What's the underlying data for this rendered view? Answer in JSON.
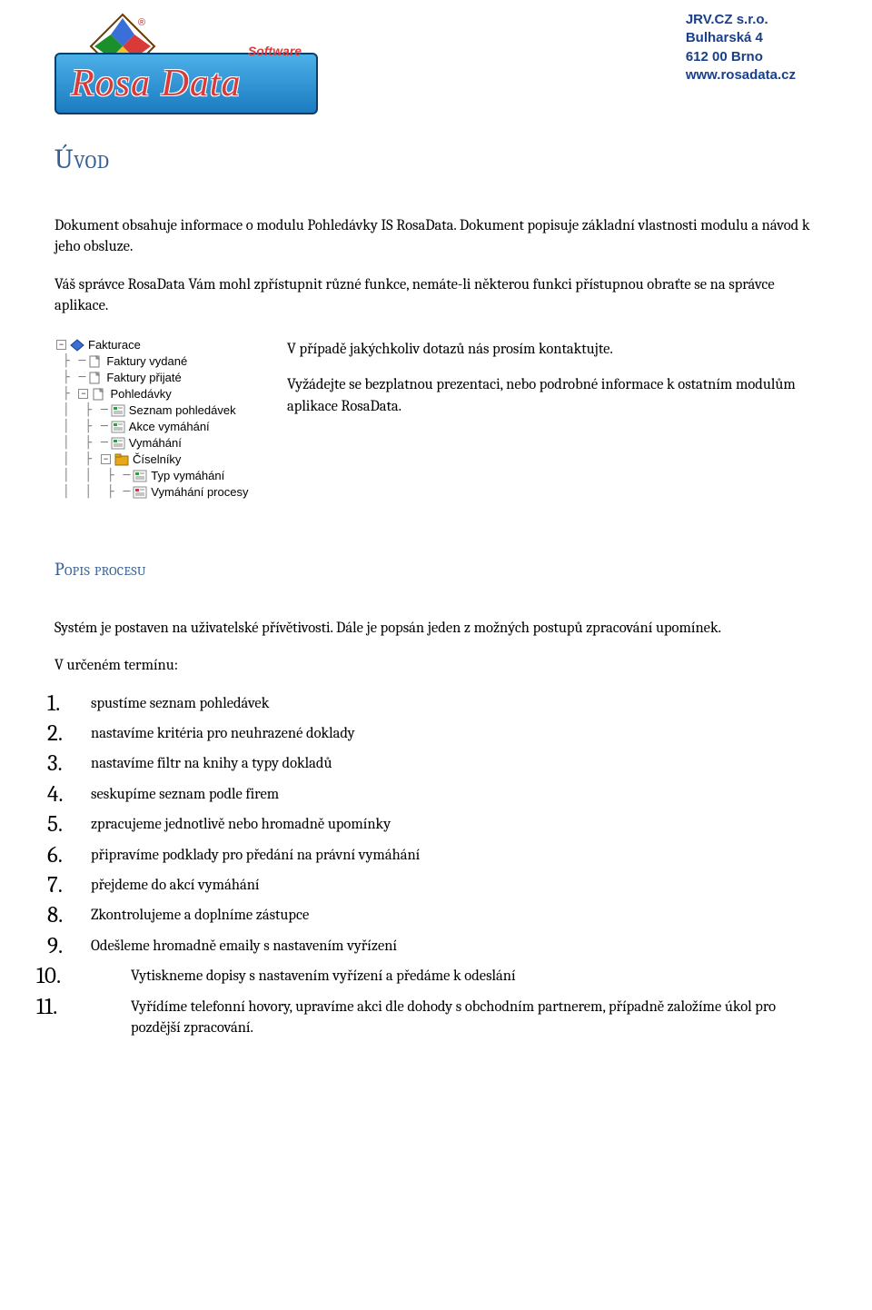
{
  "brand": {
    "logo_text": "Rosa Data",
    "software_label": "Software",
    "diamond_colors": {
      "top": "#3a6fd8",
      "right": "#d83a3a",
      "bottom": "#f3c22b",
      "left": "#1a8f2a"
    },
    "banner_gradient_top": "#4cb0e8",
    "banner_gradient_bottom": "#1b7bc0",
    "banner_border": "#0a3f6b",
    "logo_text_color": "#d93a3a"
  },
  "company": {
    "name": "JRV.CZ s.r.o.",
    "street": "Bulharská 4",
    "city": "612 00 Brno",
    "web": "www.rosadata.cz",
    "text_color": "#1a3f8a"
  },
  "heading_color": "#365f91",
  "title": "Úvod",
  "intro_p1": "Dokument obsahuje informace o modulu Pohledávky IS RosaData. Dokument popisuje základní vlastnosti modulu a návod k jeho obsluze.",
  "intro_p2": "Váš správce RosaData Vám mohl zpřístupnit různé funkce, nemáte-li některou funkci přístupnou obraťte se na správce aplikace.",
  "side_p1": "V případě jakýchkoliv dotazů nás prosím kontaktujte.",
  "side_p2": "Vyžádejte se bezplatnou prezentaci, nebo podrobné informace k ostatním modulům aplikace RosaData.",
  "tree": {
    "font": "Tahoma",
    "items": [
      {
        "indent": 0,
        "toggle": "-",
        "icon": "diamond",
        "label": "Fakturace"
      },
      {
        "indent": 1,
        "toggle": "",
        "icon": "page",
        "label": "Faktury vydané"
      },
      {
        "indent": 1,
        "toggle": "",
        "icon": "page",
        "label": "Faktury přijaté"
      },
      {
        "indent": 1,
        "toggle": "-",
        "icon": "page",
        "label": "Pohledávky"
      },
      {
        "indent": 2,
        "toggle": "",
        "icon": "list-g",
        "label": "Seznam pohledávek"
      },
      {
        "indent": 2,
        "toggle": "",
        "icon": "list-g",
        "label": "Akce vymáhání"
      },
      {
        "indent": 2,
        "toggle": "",
        "icon": "list-g",
        "label": "Vymáhání"
      },
      {
        "indent": 2,
        "toggle": "-",
        "icon": "folder",
        "label": "Číselníky"
      },
      {
        "indent": 3,
        "toggle": "",
        "icon": "list-g",
        "label": "Typ vymáhání"
      },
      {
        "indent": 3,
        "toggle": "",
        "icon": "list-r",
        "label": "Vymáhání procesy"
      }
    ],
    "icon_colors": {
      "list-g": "#2e9e3e",
      "list-r": "#c43a3a",
      "folder": "#e6a817",
      "page": "#ffffff",
      "page_border": "#7a7a7a"
    }
  },
  "section_title": "Popis procesu",
  "process_intro": "Systém je postaven na uživatelské přívětivosti. Dále je popsán jeden z možných postupů zpracování upomínek.",
  "process_lead": "V určeném termínu:",
  "steps": [
    "spustíme seznam pohledávek",
    "nastavíme kritéria pro neuhrazené doklady",
    "nastavíme filtr na knihy a typy dokladů",
    "seskupíme seznam podle firem",
    "zpracujeme jednotlivě nebo hromadně upomínky",
    "připravíme podklady pro předání na právní vymáhání",
    "přejdeme do akcí vymáhání",
    "Zkontrolujeme a doplníme zástupce",
    "Odešleme hromadně emaily s nastavením vyřízení",
    "Vytiskneme dopisy s nastavením vyřízení a předáme k odeslání",
    "Vyřídíme telefonní hovory,  upravíme akci dle dohody s obchodním partnerem, případně založíme úkol pro pozdější zpracování."
  ]
}
